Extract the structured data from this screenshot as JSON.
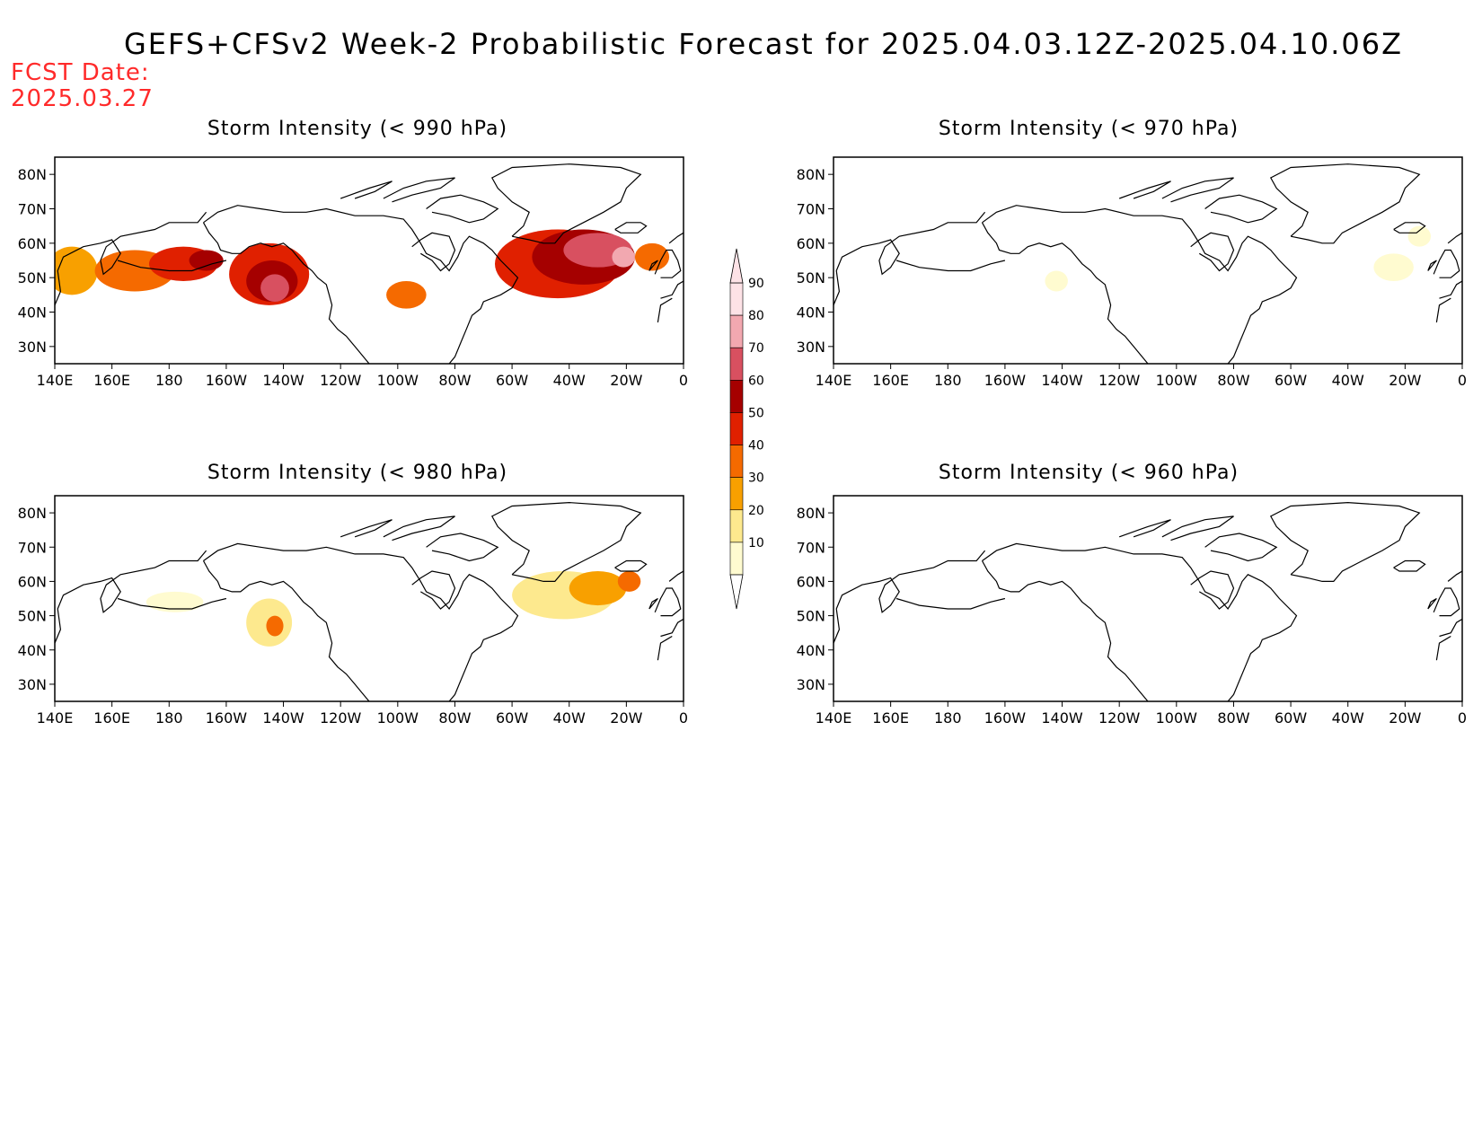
{
  "title": "GEFS+CFSv2 Week-2 Probabilistic Forecast for 2025.04.03.12Z-2025.04.10.06Z",
  "fcst_label": "FCST Date:",
  "fcst_date": "2025.03.27",
  "lon_labels": [
    "140E",
    "160E",
    "180",
    "160W",
    "140W",
    "120W",
    "100W",
    "80W",
    "60W",
    "40W",
    "20W",
    "0"
  ],
  "lat_labels": [
    "80N",
    "70N",
    "60N",
    "50N",
    "40N",
    "30N"
  ],
  "colorbar": {
    "levels": [
      "10",
      "20",
      "30",
      "40",
      "50",
      "60",
      "70",
      "80",
      "90"
    ],
    "colors": [
      "#fffbd0",
      "#fde98e",
      "#f8a000",
      "#f56a00",
      "#e02000",
      "#a50000",
      "#d85060",
      "#f2a8b0",
      "#fde2e6"
    ]
  },
  "panels": [
    {
      "id": "p990",
      "title": "Storm Intensity (< 990 hPa)",
      "blobs": [
        {
          "lon": 146,
          "lat": 52,
          "rx": 9,
          "ry": 7,
          "level": 2
        },
        {
          "lon": 168,
          "lat": 52,
          "rx": 14,
          "ry": 6,
          "level": 3
        },
        {
          "lon": 185,
          "lat": 54,
          "rx": 12,
          "ry": 5,
          "level": 4
        },
        {
          "lon": 193,
          "lat": 55,
          "rx": 6,
          "ry": 3,
          "level": 5
        },
        {
          "lon": 215,
          "lat": 51,
          "rx": 14,
          "ry": 9,
          "level": 4
        },
        {
          "lon": 216,
          "lat": 49,
          "rx": 9,
          "ry": 6,
          "level": 5
        },
        {
          "lon": 217,
          "lat": 47,
          "rx": 5,
          "ry": 4,
          "level": 6
        },
        {
          "lon": 263,
          "lat": 45,
          "rx": 7,
          "ry": 4,
          "level": 3
        },
        {
          "lon": 316,
          "lat": 54,
          "rx": 22,
          "ry": 10,
          "level": 4
        },
        {
          "lon": 325,
          "lat": 56,
          "rx": 18,
          "ry": 8,
          "level": 5
        },
        {
          "lon": 330,
          "lat": 58,
          "rx": 12,
          "ry": 5,
          "level": 6
        },
        {
          "lon": 339,
          "lat": 56,
          "rx": 4,
          "ry": 3,
          "level": 7
        },
        {
          "lon": 349,
          "lat": 56,
          "rx": 6,
          "ry": 4,
          "level": 3
        }
      ]
    },
    {
      "id": "p970",
      "title": "Storm Intensity (< 970 hPa)",
      "blobs": [
        {
          "lon": 218,
          "lat": 49,
          "rx": 4,
          "ry": 3,
          "level": 0
        },
        {
          "lon": 336,
          "lat": 53,
          "rx": 7,
          "ry": 4,
          "level": 0
        },
        {
          "lon": 345,
          "lat": 62,
          "rx": 4,
          "ry": 3,
          "level": 0
        }
      ]
    },
    {
      "id": "p980",
      "title": "Storm Intensity (< 980 hPa)",
      "blobs": [
        {
          "lon": 182,
          "lat": 54,
          "rx": 10,
          "ry": 3,
          "level": 0
        },
        {
          "lon": 215,
          "lat": 48,
          "rx": 8,
          "ry": 7,
          "level": 1
        },
        {
          "lon": 217,
          "lat": 47,
          "rx": 3,
          "ry": 3,
          "level": 3
        },
        {
          "lon": 318,
          "lat": 56,
          "rx": 18,
          "ry": 7,
          "level": 1
        },
        {
          "lon": 330,
          "lat": 58,
          "rx": 10,
          "ry": 5,
          "level": 2
        },
        {
          "lon": 341,
          "lat": 60,
          "rx": 4,
          "ry": 3,
          "level": 3
        }
      ]
    },
    {
      "id": "p960",
      "title": "Storm Intensity (< 960 hPa)",
      "blobs": []
    }
  ]
}
